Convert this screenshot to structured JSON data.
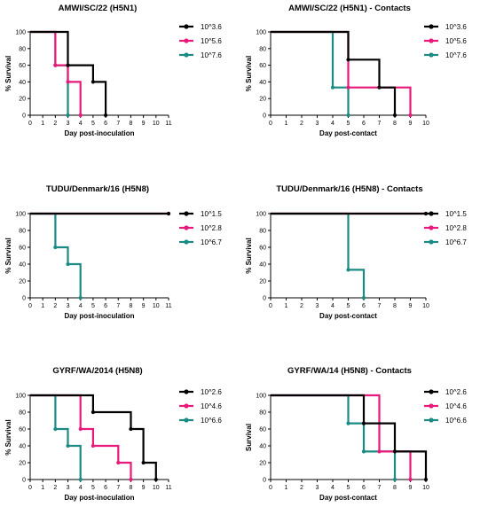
{
  "colors": {
    "black": "#000000",
    "magenta": "#e8197a",
    "teal": "#1a8a83"
  },
  "chart_data": [
    {
      "type": "line",
      "step": true,
      "title": "AMWI/SC/22 (H5N1)",
      "xlabel": "Day post-inoculation",
      "ylabel": "% Survival",
      "xlim": [
        0,
        11
      ],
      "ylim": [
        0,
        100
      ],
      "xticks": [
        0,
        1,
        2,
        3,
        4,
        5,
        6,
        7,
        8,
        9,
        10,
        11
      ],
      "yticks": [
        0,
        20,
        40,
        60,
        80,
        100
      ],
      "legend_position": "right",
      "series": [
        {
          "name": "10^3.6",
          "color": "black",
          "points": [
            [
              0,
              100
            ],
            [
              3,
              100
            ],
            [
              3,
              60
            ],
            [
              5,
              60
            ],
            [
              5,
              40
            ],
            [
              6,
              40
            ],
            [
              6,
              0
            ]
          ]
        },
        {
          "name": "10^5.6",
          "color": "magenta",
          "points": [
            [
              0,
              100
            ],
            [
              2,
              100
            ],
            [
              2,
              60
            ],
            [
              3,
              60
            ],
            [
              3,
              40
            ],
            [
              4,
              40
            ],
            [
              4,
              0
            ]
          ]
        },
        {
          "name": "10^7.6",
          "color": "teal",
          "points": [
            [
              0,
              100
            ],
            [
              2,
              100
            ],
            [
              2,
              60
            ],
            [
              3,
              60
            ],
            [
              3,
              0
            ]
          ]
        }
      ]
    },
    {
      "type": "line",
      "step": true,
      "title": "AMWI/SC/22 (H5N1) - Contacts",
      "xlabel": "Day post-contact",
      "ylabel": "% Survival",
      "xlim": [
        0,
        10
      ],
      "ylim": [
        0,
        100
      ],
      "xticks": [
        0,
        1,
        2,
        3,
        4,
        5,
        6,
        7,
        8,
        9,
        10
      ],
      "yticks": [
        0,
        20,
        40,
        60,
        80,
        100
      ],
      "legend_position": "right",
      "series": [
        {
          "name": "10^3.6",
          "color": "black",
          "points": [
            [
              0,
              100
            ],
            [
              5,
              100
            ],
            [
              5,
              66.7
            ],
            [
              7,
              66.7
            ],
            [
              7,
              33.3
            ],
            [
              8,
              33.3
            ],
            [
              8,
              0
            ]
          ]
        },
        {
          "name": "10^5.6",
          "color": "magenta",
          "points": [
            [
              0,
              100
            ],
            [
              5,
              100
            ],
            [
              5,
              33.3
            ],
            [
              9,
              33.3
            ],
            [
              9,
              0
            ]
          ]
        },
        {
          "name": "10^7.6",
          "color": "teal",
          "points": [
            [
              0,
              100
            ],
            [
              4,
              100
            ],
            [
              4,
              33.3
            ],
            [
              5,
              33.3
            ],
            [
              5,
              0
            ]
          ]
        }
      ]
    },
    {
      "type": "line",
      "step": true,
      "title": "TUDU/Denmark/16 (H5N8)",
      "xlabel": "Day post-inoculation",
      "ylabel": "% Survival",
      "xlim": [
        0,
        11
      ],
      "ylim": [
        0,
        100
      ],
      "xticks": [
        0,
        1,
        2,
        3,
        4,
        5,
        6,
        7,
        8,
        9,
        10,
        11
      ],
      "yticks": [
        0,
        20,
        40,
        60,
        80,
        100
      ],
      "legend_position": "right",
      "series": [
        {
          "name": "10^1.5",
          "color": "black",
          "points": [
            [
              0,
              100
            ],
            [
              11,
              100
            ]
          ]
        },
        {
          "name": "10^2.8",
          "color": "magenta",
          "points": [
            [
              0,
              100
            ],
            [
              11,
              100
            ]
          ]
        },
        {
          "name": "10^6.7",
          "color": "teal",
          "points": [
            [
              0,
              100
            ],
            [
              2,
              100
            ],
            [
              2,
              60
            ],
            [
              3,
              60
            ],
            [
              3,
              40
            ],
            [
              4,
              40
            ],
            [
              4,
              0
            ]
          ]
        }
      ]
    },
    {
      "type": "line",
      "step": true,
      "title": "TUDU/Denmark/16 (H5N8) - Contacts",
      "xlabel": "Day post-contact",
      "ylabel": "% Survival",
      "xlim": [
        0,
        10
      ],
      "ylim": [
        0,
        100
      ],
      "xticks": [
        0,
        1,
        2,
        3,
        4,
        5,
        6,
        7,
        8,
        9,
        10
      ],
      "yticks": [
        0,
        20,
        40,
        60,
        80,
        100
      ],
      "legend_position": "right",
      "series": [
        {
          "name": "10^1.5",
          "color": "black",
          "points": [
            [
              0,
              100
            ],
            [
              10,
              100
            ]
          ]
        },
        {
          "name": "10^2.8",
          "color": "magenta",
          "points": [
            [
              0,
              100
            ],
            [
              10,
              100
            ]
          ]
        },
        {
          "name": "10^6.7",
          "color": "teal",
          "points": [
            [
              0,
              100
            ],
            [
              5,
              100
            ],
            [
              5,
              33.3
            ],
            [
              6,
              33.3
            ],
            [
              6,
              0
            ]
          ]
        }
      ]
    },
    {
      "type": "line",
      "step": true,
      "title": "GYRF/WA/2014 (H5N8)",
      "xlabel": "Day post-inoculation",
      "ylabel": "% Survival",
      "xlim": [
        0,
        11
      ],
      "ylim": [
        0,
        100
      ],
      "xticks": [
        0,
        1,
        2,
        3,
        4,
        5,
        6,
        7,
        8,
        9,
        10,
        11
      ],
      "yticks": [
        0,
        20,
        40,
        60,
        80,
        100
      ],
      "legend_position": "right",
      "series": [
        {
          "name": "10^2.6",
          "color": "black",
          "points": [
            [
              0,
              100
            ],
            [
              5,
              100
            ],
            [
              5,
              80
            ],
            [
              8,
              80
            ],
            [
              8,
              60
            ],
            [
              9,
              60
            ],
            [
              9,
              20
            ],
            [
              10,
              20
            ],
            [
              10,
              0
            ]
          ]
        },
        {
          "name": "10^4.6",
          "color": "magenta",
          "points": [
            [
              0,
              100
            ],
            [
              4,
              100
            ],
            [
              4,
              60
            ],
            [
              5,
              60
            ],
            [
              5,
              40
            ],
            [
              7,
              40
            ],
            [
              7,
              20
            ],
            [
              8,
              20
            ],
            [
              8,
              0
            ]
          ]
        },
        {
          "name": "10^6.6",
          "color": "teal",
          "points": [
            [
              0,
              100
            ],
            [
              2,
              100
            ],
            [
              2,
              60
            ],
            [
              3,
              60
            ],
            [
              3,
              40
            ],
            [
              4,
              40
            ],
            [
              4,
              0
            ]
          ]
        }
      ]
    },
    {
      "type": "line",
      "step": true,
      "title": "GYRF/WA/14 (H5N8) - Contacts",
      "xlabel": "Day post-contact",
      "ylabel": "Survival",
      "xlim": [
        0,
        10
      ],
      "ylim": [
        0,
        100
      ],
      "xticks": [
        0,
        1,
        2,
        3,
        4,
        5,
        6,
        7,
        8,
        9,
        10
      ],
      "yticks": [
        0,
        20,
        40,
        60,
        80,
        100
      ],
      "legend_position": "right",
      "series": [
        {
          "name": "10^2.6",
          "color": "black",
          "points": [
            [
              0,
              100
            ],
            [
              6,
              100
            ],
            [
              6,
              66.7
            ],
            [
              8,
              66.7
            ],
            [
              8,
              33.3
            ],
            [
              10,
              33.3
            ],
            [
              10,
              0
            ]
          ]
        },
        {
          "name": "10^4.6",
          "color": "magenta",
          "points": [
            [
              0,
              100
            ],
            [
              7,
              100
            ],
            [
              7,
              33.3
            ],
            [
              9,
              33.3
            ],
            [
              9,
              0
            ]
          ]
        },
        {
          "name": "10^6.6",
          "color": "teal",
          "points": [
            [
              0,
              100
            ],
            [
              5,
              100
            ],
            [
              5,
              66.7
            ],
            [
              6,
              66.7
            ],
            [
              6,
              33.3
            ],
            [
              8,
              33.3
            ],
            [
              8,
              0
            ]
          ]
        }
      ]
    }
  ]
}
